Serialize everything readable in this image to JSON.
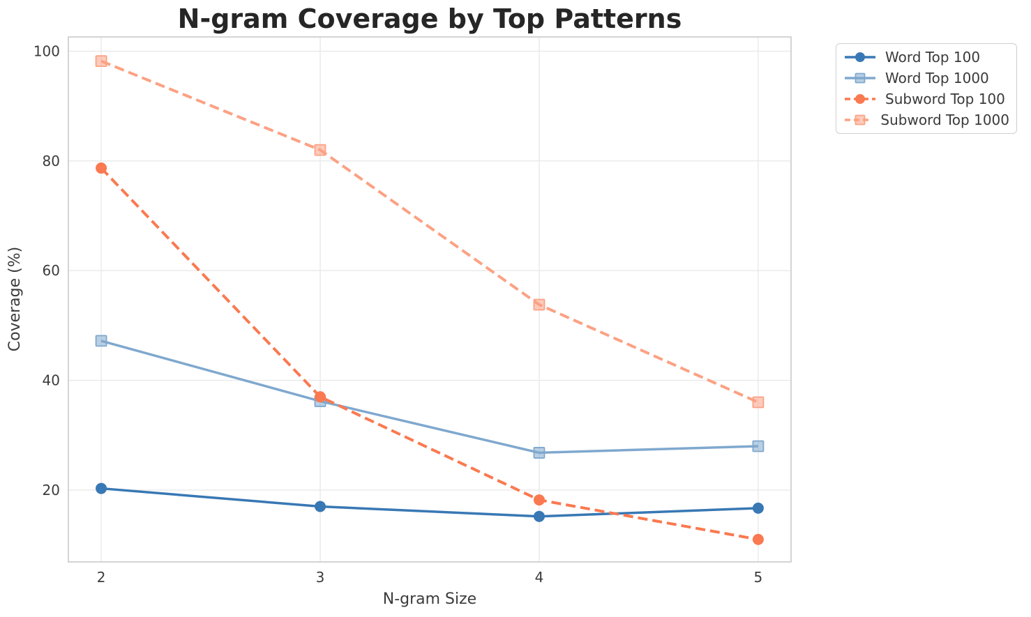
{
  "chart_data": {
    "type": "line",
    "title": "N-gram Coverage by Top Patterns",
    "xlabel": "N-gram Size",
    "ylabel": "Coverage (%)",
    "x": [
      2,
      3,
      4,
      5
    ],
    "xticks": [
      "2",
      "3",
      "4",
      "5"
    ],
    "ytick_values": [
      20,
      40,
      60,
      80,
      100
    ],
    "yticks": [
      "20",
      "40",
      "60",
      "80",
      "100"
    ],
    "xlim": [
      1.85,
      5.15
    ],
    "ylim": [
      6.9,
      102.6
    ],
    "grid": true,
    "legend_position": "upper-right-outside",
    "colors": {
      "grid": "#e9e9e9",
      "spine": "#c9c9c9",
      "title_text": "#262626",
      "tick_text": "#3b3b3b",
      "background": "#ffffff"
    },
    "series": [
      {
        "name": "Word Top 100",
        "values": [
          20.3,
          17.0,
          15.2,
          16.7
        ],
        "color": "#3878b4",
        "line_style": "solid",
        "marker": "circle"
      },
      {
        "name": "Word Top 1000",
        "values": [
          47.2,
          36.2,
          26.8,
          28.0
        ],
        "color": "#7fa8ce",
        "line_style": "solid",
        "marker": "square"
      },
      {
        "name": "Subword Top 100",
        "values": [
          78.7,
          37.0,
          18.2,
          11.0
        ],
        "color": "#fa7950",
        "line_style": "dashed",
        "marker": "circle"
      },
      {
        "name": "Subword Top 1000",
        "values": [
          98.2,
          82.0,
          53.8,
          36.0
        ],
        "color": "#fca183",
        "line_style": "dashed",
        "marker": "square"
      }
    ]
  }
}
